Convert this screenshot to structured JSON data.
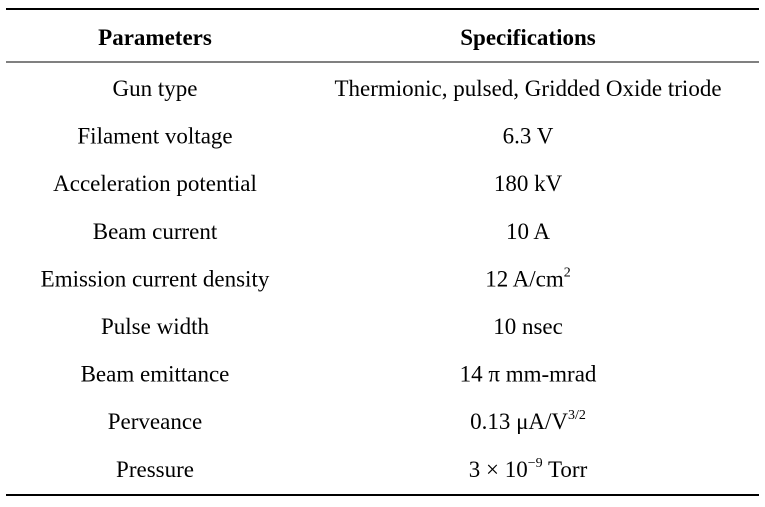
{
  "table": {
    "header": [
      "Parameters",
      "Specifications"
    ],
    "rows": [
      {
        "parameter": "Gun type",
        "specification": "Thermionic, pulsed, Gridded Oxide triode"
      },
      {
        "parameter": "Filament voltage",
        "specification": "6.3 V"
      },
      {
        "parameter": "Acceleration potential",
        "specification": "180 kV"
      },
      {
        "parameter": "Beam current",
        "specification": "10 A"
      },
      {
        "parameter": "Emission current density",
        "specification": "12 A/cm",
        "sup": "2"
      },
      {
        "parameter": "Pulse width",
        "specification": "10 nsec"
      },
      {
        "parameter": "Beam emittance",
        "specification": "14 π mm-mrad"
      },
      {
        "parameter": "Perveance",
        "specification": "0.13 μA/V",
        "sup": "3/2"
      },
      {
        "parameter": "Pressure",
        "specification": "3 × 10",
        "sup": "−9",
        "suffix": " Torr"
      }
    ]
  }
}
